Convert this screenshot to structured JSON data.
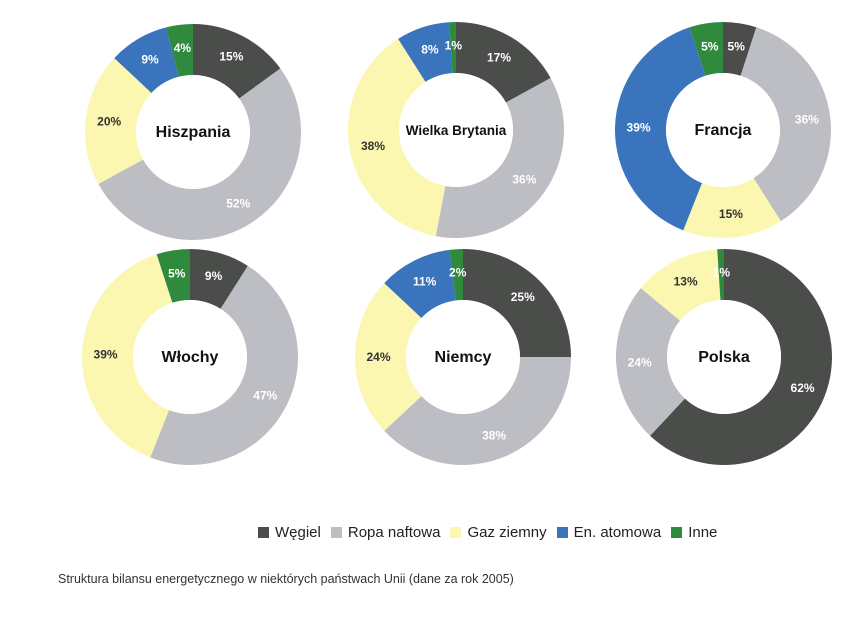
{
  "chart_data": {
    "type": "pie",
    "caption": "Struktura bilansu energetycznego w niektórych państwach Unii (dane za rok 2005)",
    "categories": [
      "Węgiel",
      "Ropa naftowa",
      "Gaz ziemny",
      "En. atomowa",
      "Inne"
    ],
    "colors": {
      "Węgiel": "#4b4d4b",
      "Ropa naftowa": "#bdbec4",
      "Gaz ziemny": "#fbf7b0",
      "En. atomowa": "#3a74bd",
      "Inne": "#2f8a3d"
    },
    "label_colors": {
      "Węgiel": "#ffffff",
      "Ropa naftowa": "#ffffff",
      "Gaz ziemny": "#333333",
      "En. atomowa": "#ffffff",
      "Inne": "#ffffff"
    },
    "charts": [
      {
        "name": "Hiszpania",
        "slices": [
          {
            "category": "Węgiel",
            "value": 15,
            "label": "15%"
          },
          {
            "category": "Ropa naftowa",
            "value": 52,
            "label": "52%"
          },
          {
            "category": "Gaz ziemny",
            "value": 20,
            "label": "20%"
          },
          {
            "category": "En. atomowa",
            "value": 9,
            "label": "9%"
          },
          {
            "category": "Inne",
            "value": 4,
            "label": "4%"
          }
        ]
      },
      {
        "name": "Wielka Brytania",
        "slices": [
          {
            "category": "Węgiel",
            "value": 17,
            "label": "17%"
          },
          {
            "category": "Ropa naftowa",
            "value": 36,
            "label": "36%"
          },
          {
            "category": "Gaz ziemny",
            "value": 38,
            "label": "38%"
          },
          {
            "category": "En. atomowa",
            "value": 8,
            "label": "8%"
          },
          {
            "category": "Inne",
            "value": 1,
            "label": "1%"
          }
        ]
      },
      {
        "name": "Francja",
        "slices": [
          {
            "category": "Węgiel",
            "value": 5,
            "label": "5%"
          },
          {
            "category": "Ropa naftowa",
            "value": 36,
            "label": "36%"
          },
          {
            "category": "Gaz ziemny",
            "value": 15,
            "label": "15%"
          },
          {
            "category": "En. atomowa",
            "value": 39,
            "label": "39%"
          },
          {
            "category": "Inne",
            "value": 5,
            "label": "5%"
          }
        ]
      },
      {
        "name": "Włochy",
        "slices": [
          {
            "category": "Węgiel",
            "value": 9,
            "label": "9%"
          },
          {
            "category": "Ropa naftowa",
            "value": 47,
            "label": "47%"
          },
          {
            "category": "Gaz ziemny",
            "value": 39,
            "label": "39%"
          },
          {
            "category": "En. atomowa",
            "value": 0,
            "label": ""
          },
          {
            "category": "Inne",
            "value": 5,
            "label": "5%"
          }
        ]
      },
      {
        "name": "Niemcy",
        "slices": [
          {
            "category": "Węgiel",
            "value": 25,
            "label": "25%"
          },
          {
            "category": "Ropa naftowa",
            "value": 38,
            "label": "38%"
          },
          {
            "category": "Gaz ziemny",
            "value": 24,
            "label": "24%"
          },
          {
            "category": "En. atomowa",
            "value": 11,
            "label": "11%"
          },
          {
            "category": "Inne",
            "value": 2,
            "label": "2%"
          }
        ]
      },
      {
        "name": "Polska",
        "slices": [
          {
            "category": "Węgiel",
            "value": 62,
            "label": "62%"
          },
          {
            "category": "Ropa naftowa",
            "value": 24,
            "label": "24%"
          },
          {
            "category": "Gaz ziemny",
            "value": 13,
            "label": "13%"
          },
          {
            "category": "En. atomowa",
            "value": 0,
            "label": ""
          },
          {
            "category": "Inne",
            "value": 1,
            "label": "1%"
          }
        ]
      }
    ]
  }
}
